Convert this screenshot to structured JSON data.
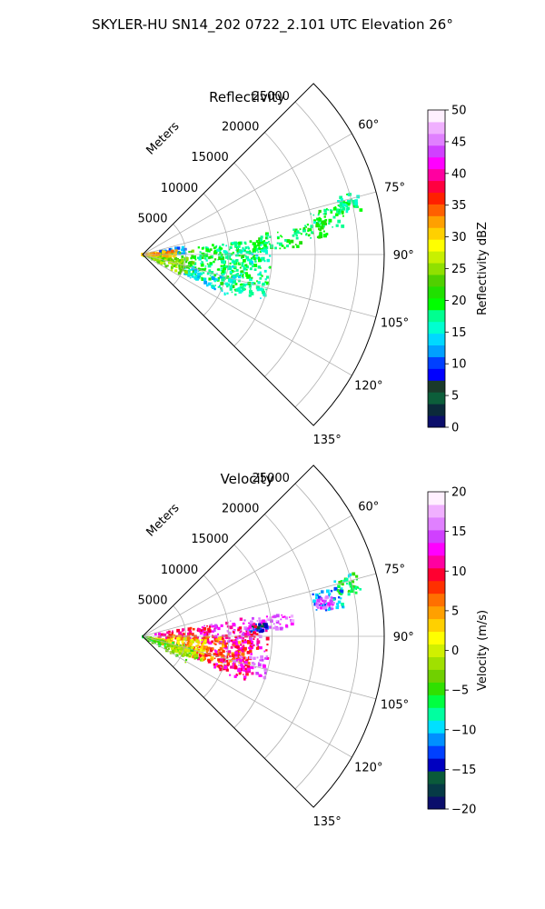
{
  "figure": {
    "suptitle": "SKYLER-HU  SN14_202  0722_2.101 UTC Elevation 26°"
  },
  "chart_data": [
    {
      "type": "heatmap",
      "subtype": "polar-sector-radar",
      "title": "Reflectivity",
      "radial_axis_label": "Meters",
      "radial_ticks": [
        5000,
        10000,
        15000,
        20000,
        25000
      ],
      "radial_tick_labels": [
        "5000",
        "10000",
        "15000",
        "20000",
        "25000"
      ],
      "rlim": [
        0,
        28000
      ],
      "angle_ticks": [
        60,
        75,
        90,
        105,
        120,
        135
      ],
      "angle_tick_labels": [
        "60°",
        "75°",
        "90°",
        "105°",
        "120°",
        "135°"
      ],
      "theta_range_deg": [
        45,
        135
      ],
      "grid": true,
      "colorbar": {
        "label": "Reflectivity dBZ",
        "range": [
          0,
          50
        ],
        "ticks": [
          0,
          5,
          10,
          15,
          20,
          25,
          30,
          35,
          40,
          45,
          50
        ],
        "tick_labels": [
          "0",
          "5",
          "10",
          "15",
          "20",
          "25",
          "30",
          "35",
          "40",
          "45",
          "50"
        ]
      },
      "echo_regions": [
        {
          "theta": 76,
          "r": 24500,
          "dtheta": 2.5,
          "dr": 1400,
          "value": 18
        },
        {
          "theta": 82,
          "r": 20000,
          "dtheta": 2.5,
          "dr": 1500,
          "value": 20
        },
        {
          "theta": 79,
          "r": 22000,
          "dtheta": 3,
          "dr": 2000,
          "value": 19
        },
        {
          "theta": 84,
          "r": 16000,
          "dtheta": 4,
          "dr": 2500,
          "value": 19
        },
        {
          "theta": 86,
          "r": 12500,
          "dtheta": 3,
          "dr": 2000,
          "value": 18
        },
        {
          "theta": 92,
          "r": 9500,
          "dtheta": 10,
          "dr": 3500,
          "value": 18
        },
        {
          "theta": 96,
          "r": 12000,
          "dtheta": 8,
          "dr": 3000,
          "value": 17
        },
        {
          "theta": 102,
          "r": 9000,
          "dtheta": 12,
          "dr": 4000,
          "value": 19
        },
        {
          "theta": 106,
          "r": 12500,
          "dtheta": 5,
          "dr": 2500,
          "value": 17
        },
        {
          "theta": 110,
          "r": 8000,
          "dtheta": 6,
          "dr": 3000,
          "value": 15
        },
        {
          "theta": 84,
          "r": 3500,
          "dtheta": 5,
          "dr": 1500,
          "value": 12
        },
        {
          "theta": 100,
          "r": 3000,
          "dtheta": 14,
          "dr": 3000,
          "value": 23
        },
        {
          "theta": 108,
          "r": 2500,
          "dtheta": 10,
          "dr": 2500,
          "value": 25
        },
        {
          "theta": 88,
          "r": 2000,
          "dtheta": 6,
          "dr": 2000,
          "value": 32
        }
      ]
    },
    {
      "type": "heatmap",
      "subtype": "polar-sector-radar",
      "title": "Velocity",
      "radial_axis_label": "Meters",
      "radial_ticks": [
        5000,
        10000,
        15000,
        20000,
        25000
      ],
      "radial_tick_labels": [
        "5000",
        "10000",
        "15000",
        "20000",
        "25000"
      ],
      "rlim": [
        0,
        28000
      ],
      "angle_ticks": [
        60,
        75,
        90,
        105,
        120,
        135
      ],
      "angle_tick_labels": [
        "60°",
        "75°",
        "90°",
        "105°",
        "120°",
        "135°"
      ],
      "theta_range_deg": [
        45,
        135
      ],
      "grid": true,
      "colorbar": {
        "label": "Velocity (m/s)",
        "range": [
          -20,
          20
        ],
        "ticks": [
          -20,
          -15,
          -10,
          -5,
          0,
          5,
          10,
          15,
          20
        ],
        "tick_labels": [
          "−20",
          "−15",
          "−10",
          "−5",
          "0",
          "5",
          "10",
          "15",
          "20"
        ]
      },
      "echo_regions": [
        {
          "theta": 76,
          "r": 24500,
          "dtheta": 2.5,
          "dr": 1400,
          "value": -7
        },
        {
          "theta": 79,
          "r": 22000,
          "dtheta": 3,
          "dr": 1800,
          "value": -11
        },
        {
          "theta": 80,
          "r": 21500,
          "dtheta": 2,
          "dr": 1000,
          "value": 15
        },
        {
          "theta": 84,
          "r": 15500,
          "dtheta": 3,
          "dr": 2000,
          "value": 15
        },
        {
          "theta": 86,
          "r": 13500,
          "dtheta": 2,
          "dr": 1000,
          "value": -14
        },
        {
          "theta": 88,
          "r": 10500,
          "dtheta": 8,
          "dr": 3500,
          "value": 14
        },
        {
          "theta": 91,
          "r": 12500,
          "dtheta": 6,
          "dr": 2000,
          "value": 11
        },
        {
          "theta": 88,
          "r": 5000,
          "dtheta": 8,
          "dr": 3500,
          "value": 10
        },
        {
          "theta": 96,
          "r": 10000,
          "dtheta": 8,
          "dr": 3000,
          "value": 11
        },
        {
          "theta": 100,
          "r": 7500,
          "dtheta": 10,
          "dr": 4500,
          "value": 6
        },
        {
          "theta": 106,
          "r": 9500,
          "dtheta": 6,
          "dr": 3500,
          "value": 8
        },
        {
          "theta": 104,
          "r": 13000,
          "dtheta": 5,
          "dr": 2000,
          "value": 14
        },
        {
          "theta": 110,
          "r": 11000,
          "dtheta": 4,
          "dr": 2000,
          "value": 11
        },
        {
          "theta": 103,
          "r": 4500,
          "dtheta": 10,
          "dr": 3000,
          "value": 2
        },
        {
          "theta": 112,
          "r": 3000,
          "dtheta": 10,
          "dr": 3000,
          "value": -4
        },
        {
          "theta": 108,
          "r": 5500,
          "dtheta": 6,
          "dr": 2000,
          "value": -2
        }
      ]
    }
  ],
  "colors": {
    "dbz_scale": [
      "#0b0e6b",
      "#0b2a3a",
      "#0c5e3a",
      "#1a3a2a",
      "#0000ff",
      "#0040ff",
      "#00a0ff",
      "#00d8ff",
      "#00ffd0",
      "#00ff90",
      "#00ff00",
      "#20e000",
      "#50d000",
      "#90e000",
      "#c8f000",
      "#ffff00",
      "#ffd000",
      "#ffa000",
      "#ff6000",
      "#ff2000",
      "#ff0040",
      "#ff00a0",
      "#ff00ff",
      "#d040ff",
      "#e080ff",
      "#f0b0ff",
      "#fff0ff"
    ],
    "vel_scale": [
      "#0b0e6b",
      "#063a46",
      "#0a5a3a",
      "#0000c0",
      "#0040ff",
      "#0090ff",
      "#00e0ff",
      "#00ffa0",
      "#00ff40",
      "#30e000",
      "#70d000",
      "#a0e000",
      "#d0f000",
      "#ffff00",
      "#ffd000",
      "#ffa000",
      "#ff7000",
      "#ff3000",
      "#ff0030",
      "#ff00a0",
      "#ff00ff",
      "#d040ff",
      "#e080ff",
      "#f0b0ff",
      "#fff0ff"
    ],
    "grid": "#b0b0b0",
    "axis": "#000000"
  }
}
